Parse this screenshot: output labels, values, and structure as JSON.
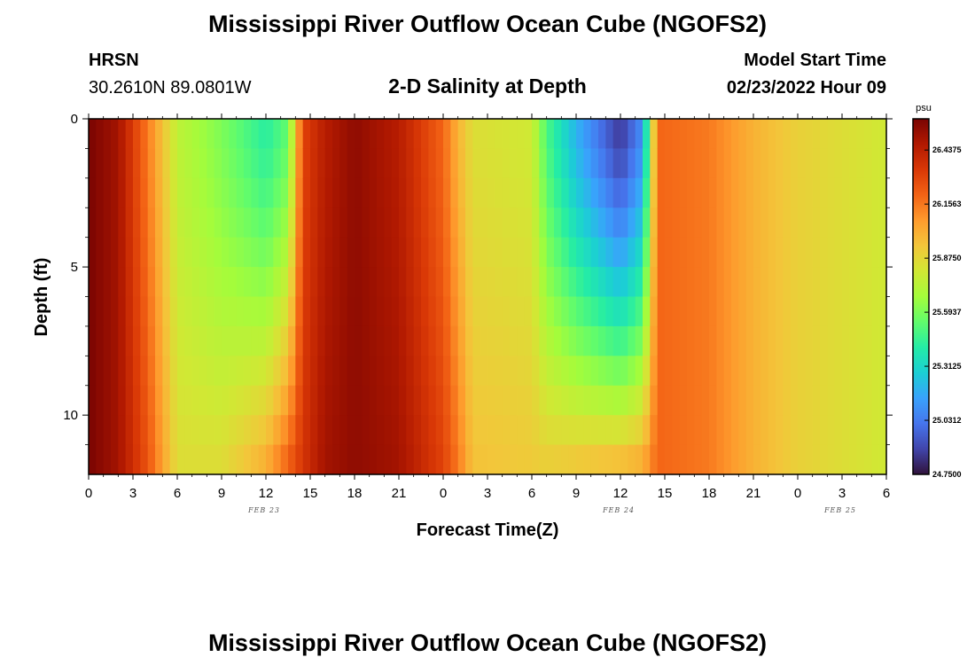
{
  "header": {
    "title": "Mississippi River Outflow Ocean Cube (NGOFS2)",
    "station_code": "HRSN",
    "station_coords": "30.2610N  89.0801W",
    "subtitle": "2-D Salinity at Depth",
    "model_start_label": "Model Start Time",
    "model_start_value": "02/23/2022 Hour 09"
  },
  "footer": {
    "title_repeat": "Mississippi River Outflow Ocean Cube (NGOFS2)"
  },
  "colorbar": {
    "unit": "psu",
    "tick_labels": [
      "26.4375",
      "26.1563",
      "25.8750",
      "25.5937",
      "25.3125",
      "25.0312",
      "24.7500"
    ],
    "colors": [
      "#30123b",
      "#4145ab",
      "#4675ed",
      "#39a2fc",
      "#1bcfd4",
      "#24eca6",
      "#61fc6c",
      "#a4fc3b",
      "#d1e834",
      "#f3c63a",
      "#fe9b2d",
      "#f36315",
      "#d93806",
      "#b11901",
      "#7a0402"
    ]
  },
  "chart_data": {
    "type": "heatmap",
    "title": "2-D Salinity at Depth",
    "xlabel": "Forecast Time(Z)",
    "ylabel": "Depth (ft)",
    "x_tick_labels": [
      "0",
      "3",
      "6",
      "9",
      "12",
      "15",
      "18",
      "21",
      "0",
      "3",
      "6",
      "9",
      "12",
      "15",
      "18",
      "21",
      "0",
      "3",
      "6"
    ],
    "x_range_hours": [
      0,
      54
    ],
    "day_labels": [
      {
        "label": "FEB 23",
        "hour": 12
      },
      {
        "label": "FEB 24",
        "hour": 36
      },
      {
        "label": "FEB 25",
        "hour": 51
      }
    ],
    "y_tick_labels": [
      "0",
      "5",
      "10"
    ],
    "y_range_ft": [
      0,
      12
    ],
    "value_range_psu": [
      24.75,
      26.6
    ],
    "depth_levels_ft": [
      0.5,
      1.5,
      2.5,
      3.5,
      4.5,
      5.5,
      6.5,
      7.5,
      8.5,
      9.5,
      10.5,
      11.5
    ],
    "profile_keyframes": [
      {
        "hour": 0,
        "surface": 26.6,
        "bottom": 26.6
      },
      {
        "hour": 2,
        "surface": 26.5,
        "bottom": 26.5
      },
      {
        "hour": 4,
        "surface": 26.15,
        "bottom": 26.25
      },
      {
        "hour": 5,
        "surface": 25.95,
        "bottom": 26.05
      },
      {
        "hour": 6,
        "surface": 25.75,
        "bottom": 25.85
      },
      {
        "hour": 9,
        "surface": 25.6,
        "bottom": 25.85
      },
      {
        "hour": 12,
        "surface": 25.42,
        "bottom": 26.0
      },
      {
        "hour": 13.5,
        "surface": 25.55,
        "bottom": 26.2
      },
      {
        "hour": 14.5,
        "surface": 26.3,
        "bottom": 26.35
      },
      {
        "hour": 16,
        "surface": 26.45,
        "bottom": 26.5
      },
      {
        "hour": 18,
        "surface": 26.55,
        "bottom": 26.55
      },
      {
        "hour": 21,
        "surface": 26.45,
        "bottom": 26.5
      },
      {
        "hour": 24,
        "surface": 26.2,
        "bottom": 26.3
      },
      {
        "hour": 25,
        "surface": 26.0,
        "bottom": 26.15
      },
      {
        "hour": 26,
        "surface": 25.85,
        "bottom": 25.95
      },
      {
        "hour": 30,
        "surface": 25.8,
        "bottom": 25.92
      },
      {
        "hour": 31,
        "surface": 25.5,
        "bottom": 25.9
      },
      {
        "hour": 33,
        "surface": 25.2,
        "bottom": 25.92
      },
      {
        "hour": 36,
        "surface": 24.85,
        "bottom": 25.95
      },
      {
        "hour": 37.5,
        "surface": 25.1,
        "bottom": 26.0
      },
      {
        "hour": 38.5,
        "surface": 26.2,
        "bottom": 26.2
      },
      {
        "hour": 42,
        "surface": 26.15,
        "bottom": 26.15
      },
      {
        "hour": 45,
        "surface": 26.0,
        "bottom": 26.0
      },
      {
        "hour": 48,
        "surface": 25.9,
        "bottom": 25.9
      },
      {
        "hour": 51,
        "surface": 25.85,
        "bottom": 25.85
      },
      {
        "hour": 54,
        "surface": 25.8,
        "bottom": 25.8
      }
    ]
  }
}
